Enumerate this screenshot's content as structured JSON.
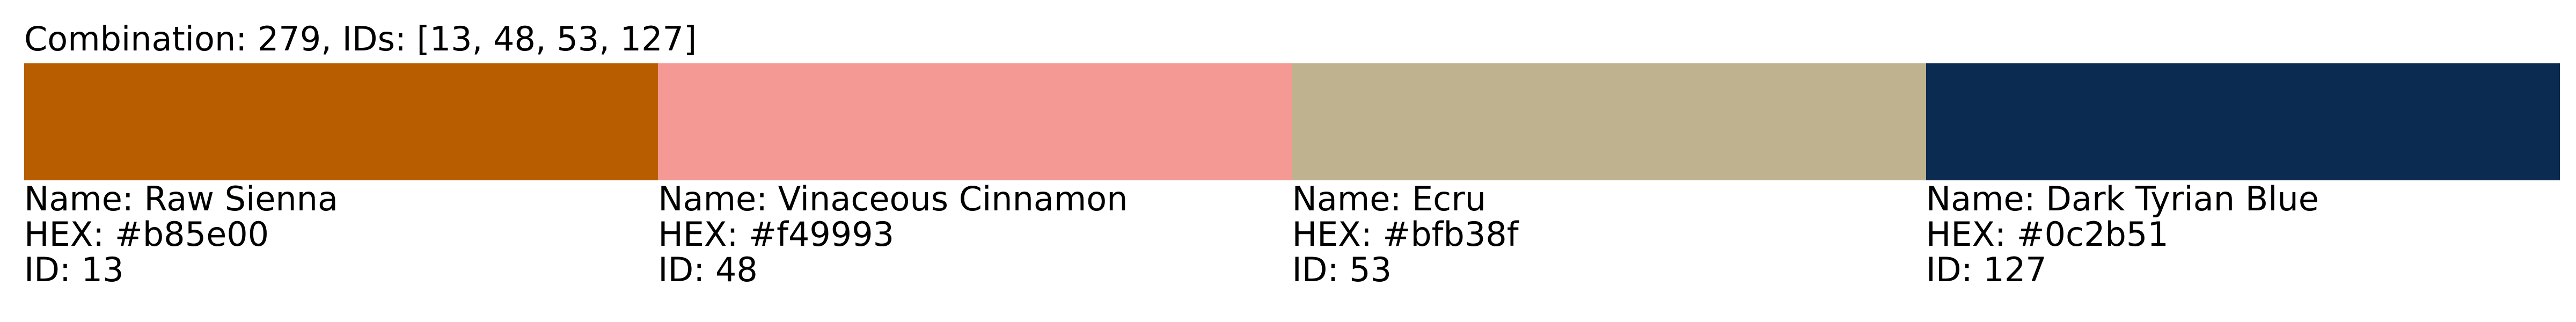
{
  "title": "Combination: 279, IDs: [13, 48, 53, 127]",
  "colors": [
    {
      "name": "Name: Raw Sienna",
      "hex": "HEX: #b85e00",
      "id": "ID: 13",
      "swatch": "#b85e00"
    },
    {
      "name": "Name: Vinaceous Cinnamon",
      "hex": "HEX: #f49993",
      "id": "ID: 48",
      "swatch": "#f49993"
    },
    {
      "name": "Name: Ecru",
      "hex": "HEX: #bfb38f",
      "id": "ID: 53",
      "swatch": "#bfb38f"
    },
    {
      "name": "Name: Dark Tyrian Blue",
      "hex": "HEX: #0c2b51",
      "id": "ID: 127",
      "swatch": "#0c2b51"
    }
  ]
}
